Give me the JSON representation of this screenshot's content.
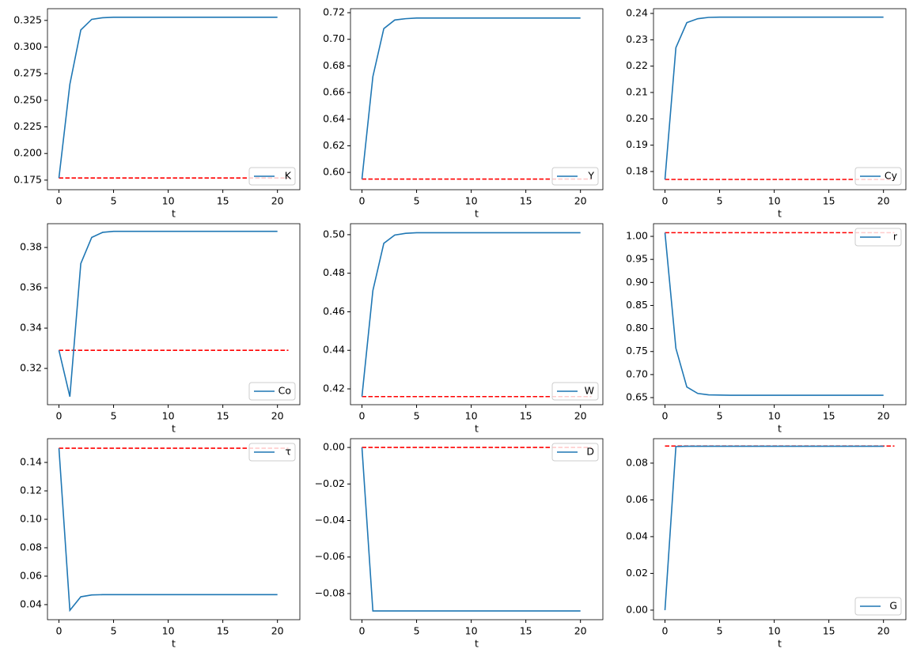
{
  "chart_data": [
    {
      "type": "line",
      "xlabel": "t",
      "x": [
        0,
        1,
        2,
        3,
        4,
        5,
        6,
        7,
        8,
        9,
        10,
        11,
        12,
        13,
        14,
        15,
        16,
        17,
        18,
        19,
        20
      ],
      "xlim": [
        -1.05,
        22.05
      ],
      "xticks": [
        0,
        5,
        10,
        15,
        20
      ],
      "series": [
        {
          "name": "K",
          "color": "#1f77b4",
          "values": [
            0.177,
            0.265,
            0.316,
            0.326,
            0.3275,
            0.328,
            0.328,
            0.328,
            0.328,
            0.328,
            0.328,
            0.328,
            0.328,
            0.328,
            0.328,
            0.328,
            0.328,
            0.328,
            0.328,
            0.328,
            0.328
          ]
        }
      ],
      "reference_line": {
        "y": 0.177,
        "x": [
          0,
          21
        ],
        "color": "#ff0000"
      },
      "ylim": [
        0.166,
        0.336
      ],
      "yticks": [
        0.175,
        {
          "value": 0.2,
          "label": "0.200"
        },
        0.225,
        {
          "value": 0.25,
          "label": "0.250"
        },
        0.275,
        {
          "value": 0.3,
          "label": "0.300"
        },
        0.325
      ],
      "legend": "lower right"
    },
    {
      "type": "line",
      "xlabel": "t",
      "x": [
        0,
        1,
        2,
        3,
        4,
        5,
        6,
        7,
        8,
        9,
        10,
        11,
        12,
        13,
        14,
        15,
        16,
        17,
        18,
        19,
        20
      ],
      "xlim": [
        -1.05,
        22.05
      ],
      "xticks": [
        0,
        5,
        10,
        15,
        20
      ],
      "series": [
        {
          "name": "Y",
          "color": "#1f77b4",
          "values": [
            0.595,
            0.672,
            0.708,
            0.7145,
            0.7155,
            0.716,
            0.716,
            0.716,
            0.716,
            0.716,
            0.716,
            0.716,
            0.716,
            0.716,
            0.716,
            0.716,
            0.716,
            0.716,
            0.716,
            0.716,
            0.716
          ]
        }
      ],
      "reference_line": {
        "y": 0.595,
        "x": [
          0,
          21
        ],
        "color": "#ff0000"
      },
      "ylim": [
        0.587,
        0.723
      ],
      "yticks": [
        {
          "value": 0.6,
          "label": "0.60"
        },
        0.62,
        0.64,
        0.66,
        0.68,
        {
          "value": 0.7,
          "label": "0.70"
        },
        0.72
      ],
      "legend": "lower right"
    },
    {
      "type": "line",
      "xlabel": "t",
      "x": [
        0,
        1,
        2,
        3,
        4,
        5,
        6,
        7,
        8,
        9,
        10,
        11,
        12,
        13,
        14,
        15,
        16,
        17,
        18,
        19,
        20
      ],
      "xlim": [
        -1.05,
        22.05
      ],
      "xticks": [
        0,
        5,
        10,
        15,
        20
      ],
      "series": [
        {
          "name": "Cy",
          "color": "#1f77b4",
          "values": [
            0.177,
            0.227,
            0.2365,
            0.238,
            0.2385,
            0.2386,
            0.2386,
            0.2386,
            0.2386,
            0.2386,
            0.2386,
            0.2386,
            0.2386,
            0.2386,
            0.2386,
            0.2386,
            0.2386,
            0.2386,
            0.2386,
            0.2386,
            0.2386
          ]
        }
      ],
      "reference_line": {
        "y": 0.177,
        "x": [
          0,
          21
        ],
        "color": "#ff0000"
      },
      "ylim": [
        0.1731,
        0.2418
      ],
      "yticks": [
        0.18,
        0.19,
        {
          "value": 0.2,
          "label": "0.20"
        },
        0.21,
        0.22,
        0.23,
        0.24
      ],
      "legend": "lower right"
    },
    {
      "type": "line",
      "xlabel": "t",
      "x": [
        0,
        1,
        2,
        3,
        4,
        5,
        6,
        7,
        8,
        9,
        10,
        11,
        12,
        13,
        14,
        15,
        16,
        17,
        18,
        19,
        20
      ],
      "xlim": [
        -1.05,
        22.05
      ],
      "xticks": [
        0,
        5,
        10,
        15,
        20
      ],
      "series": [
        {
          "name": "Co",
          "color": "#1f77b4",
          "values": [
            0.329,
            0.306,
            0.372,
            0.385,
            0.3875,
            0.388,
            0.388,
            0.388,
            0.388,
            0.388,
            0.388,
            0.388,
            0.388,
            0.388,
            0.388,
            0.388,
            0.388,
            0.388,
            0.388,
            0.388,
            0.388
          ]
        }
      ],
      "reference_line": {
        "y": 0.329,
        "x": [
          0,
          21
        ],
        "color": "#ff0000"
      },
      "ylim": [
        0.302,
        0.3918
      ],
      "yticks": [
        0.32,
        0.34,
        0.36,
        0.38
      ],
      "legend": "lower right"
    },
    {
      "type": "line",
      "xlabel": "t",
      "x": [
        0,
        1,
        2,
        3,
        4,
        5,
        6,
        7,
        8,
        9,
        10,
        11,
        12,
        13,
        14,
        15,
        16,
        17,
        18,
        19,
        20
      ],
      "xlim": [
        -1.05,
        22.05
      ],
      "xticks": [
        0,
        5,
        10,
        15,
        20
      ],
      "series": [
        {
          "name": "W",
          "color": "#1f77b4",
          "values": [
            0.416,
            0.471,
            0.4955,
            0.4998,
            0.5007,
            0.501,
            0.501,
            0.501,
            0.501,
            0.501,
            0.501,
            0.501,
            0.501,
            0.501,
            0.501,
            0.501,
            0.501,
            0.501,
            0.501,
            0.501,
            0.501
          ]
        }
      ],
      "reference_line": {
        "y": 0.416,
        "x": [
          0,
          21
        ],
        "color": "#ff0000"
      },
      "ylim": [
        0.4118,
        0.5057
      ],
      "yticks": [
        0.42,
        0.44,
        0.46,
        0.48,
        {
          "value": 0.5,
          "label": "0.50"
        }
      ],
      "legend": "lower right"
    },
    {
      "type": "line",
      "xlabel": "t",
      "x": [
        0,
        1,
        2,
        3,
        4,
        5,
        6,
        7,
        8,
        9,
        10,
        11,
        12,
        13,
        14,
        15,
        16,
        17,
        18,
        19,
        20
      ],
      "xlim": [
        -1.05,
        22.05
      ],
      "xticks": [
        0,
        5,
        10,
        15,
        20
      ],
      "series": [
        {
          "name": "r",
          "color": "#1f77b4",
          "values": [
            1.008,
            0.757,
            0.673,
            0.659,
            0.656,
            0.6555,
            0.655,
            0.655,
            0.655,
            0.655,
            0.655,
            0.655,
            0.655,
            0.655,
            0.655,
            0.655,
            0.655,
            0.655,
            0.655,
            0.655,
            0.655
          ]
        }
      ],
      "reference_line": {
        "y": 1.008,
        "x": [
          0,
          21
        ],
        "color": "#ff0000"
      },
      "ylim": [
        0.6346,
        1.0275
      ],
      "yticks": [
        0.65,
        {
          "value": 0.7,
          "label": "0.70"
        },
        0.75,
        {
          "value": 0.8,
          "label": "0.80"
        },
        0.85,
        {
          "value": 0.9,
          "label": "0.90"
        },
        0.95,
        {
          "value": 1,
          "label": "1.00"
        }
      ],
      "legend": "upper right"
    },
    {
      "type": "line",
      "xlabel": "t",
      "x": [
        0,
        1,
        2,
        3,
        4,
        5,
        6,
        7,
        8,
        9,
        10,
        11,
        12,
        13,
        14,
        15,
        16,
        17,
        18,
        19,
        20
      ],
      "xlim": [
        -1.05,
        22.05
      ],
      "xticks": [
        0,
        5,
        10,
        15,
        20
      ],
      "series": [
        {
          "name": "τ",
          "color": "#1f77b4",
          "values": [
            0.15,
            0.036,
            0.0455,
            0.0468,
            0.047,
            0.047,
            0.047,
            0.047,
            0.047,
            0.047,
            0.047,
            0.047,
            0.047,
            0.047,
            0.047,
            0.047,
            0.047,
            0.047,
            0.047,
            0.047,
            0.047
          ]
        }
      ],
      "reference_line": {
        "y": 0.15,
        "x": [
          0,
          21
        ],
        "color": "#ff0000"
      },
      "ylim": [
        0.0294,
        0.1567
      ],
      "yticks": [
        0.04,
        0.06,
        0.08,
        {
          "value": 0.1,
          "label": "0.10"
        },
        0.12,
        0.14
      ],
      "legend": "upper right"
    },
    {
      "type": "line",
      "xlabel": "t",
      "x": [
        0,
        1,
        2,
        3,
        4,
        5,
        6,
        7,
        8,
        9,
        10,
        11,
        12,
        13,
        14,
        15,
        16,
        17,
        18,
        19,
        20
      ],
      "xlim": [
        -1.05,
        22.05
      ],
      "xticks": [
        0,
        5,
        10,
        15,
        20
      ],
      "series": [
        {
          "name": "D",
          "color": "#1f77b4",
          "values": [
            0,
            -0.0895,
            -0.0895,
            -0.0895,
            -0.0895,
            -0.0895,
            -0.0895,
            -0.0895,
            -0.0895,
            -0.0895,
            -0.0895,
            -0.0895,
            -0.0895,
            -0.0895,
            -0.0895,
            -0.0895,
            -0.0895,
            -0.0895,
            -0.0895,
            -0.0895,
            -0.0895
          ]
        }
      ],
      "reference_line": {
        "y": 0,
        "x": [
          0,
          21
        ],
        "color": "#ff0000"
      },
      "ylim": [
        -0.0943,
        0.0048
      ],
      "yticks": [
        {
          "value": -0.08,
          "label": "−0.08"
        },
        {
          "value": -0.06,
          "label": "−0.06"
        },
        {
          "value": -0.04,
          "label": "−0.04"
        },
        {
          "value": -0.02,
          "label": "−0.02"
        },
        {
          "value": 0,
          "label": "0.00"
        }
      ],
      "legend": "upper right"
    },
    {
      "type": "line",
      "xlabel": "t",
      "x": [
        0,
        1,
        2,
        3,
        4,
        5,
        6,
        7,
        8,
        9,
        10,
        11,
        12,
        13,
        14,
        15,
        16,
        17,
        18,
        19,
        20
      ],
      "xlim": [
        -1.05,
        22.05
      ],
      "xticks": [
        0,
        5,
        10,
        15,
        20
      ],
      "series": [
        {
          "name": "G",
          "color": "#1f77b4",
          "values": [
            0,
            0.089,
            0.0892,
            0.0892,
            0.0892,
            0.0892,
            0.0892,
            0.0892,
            0.0892,
            0.0892,
            0.0892,
            0.0892,
            0.0892,
            0.0892,
            0.0892,
            0.0892,
            0.0892,
            0.0892,
            0.0892,
            0.0892,
            0.0892
          ]
        }
      ],
      "reference_line": {
        "y": 0.0893,
        "x": [
          0,
          21
        ],
        "color": "#ff0000"
      },
      "ylim": [
        -0.0052,
        0.0933
      ],
      "yticks": [
        {
          "value": 0,
          "label": "0.00"
        },
        0.02,
        0.04,
        0.06,
        0.08
      ],
      "legend": "lower right"
    }
  ]
}
